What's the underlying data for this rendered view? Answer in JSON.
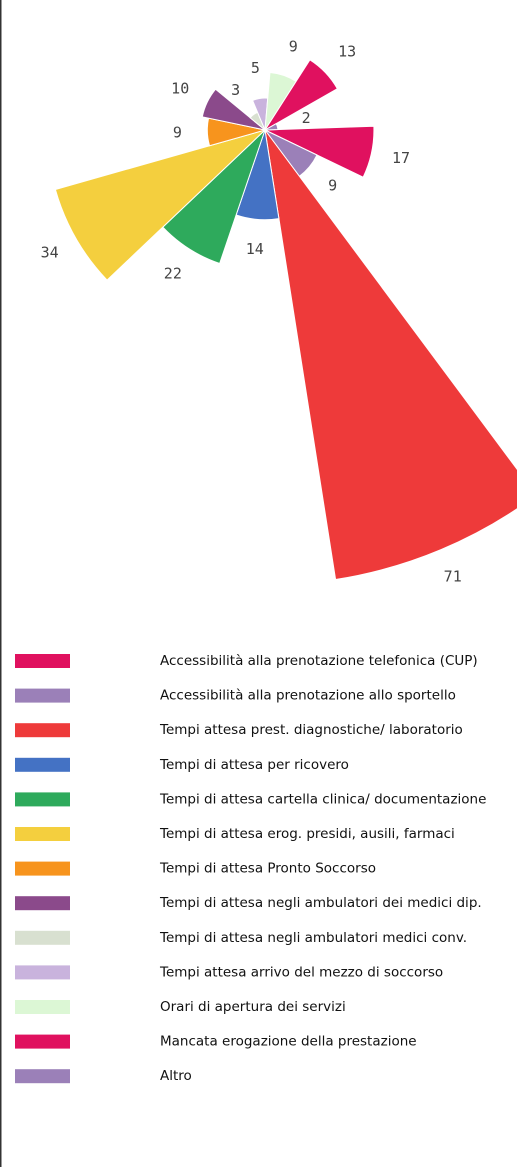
{
  "chart_data": {
    "type": "rose",
    "categories": [
      "Accessibilità alla prenotazione telefonica (CUP)",
      "Accessibilità alla prenotazione allo sportello",
      "Tempi attesa prest. diagnostiche/ laboratorio",
      "Tempi di attesa per ricovero",
      "Tempi di attesa cartella clinica/ documentazione",
      "Tempi di attesa erog. presidi, ausili, farmaci",
      "Tempi di attesa Pronto Soccorso",
      "Tempi di attesa negli ambulatori dei medici dip.",
      "Tempi di attesa negli ambulatori medici conv.",
      "Tempi attesa arrivo del mezzo di soccorso",
      "Orari di apertura dei servizi",
      "Mancata erogazione della prestazione",
      "Altro"
    ],
    "values": [
      17,
      9,
      71,
      14,
      22,
      34,
      9,
      10,
      3,
      5,
      9,
      13,
      2
    ],
    "colors": [
      "#e0115f",
      "#9b80b8",
      "#ee3a3a",
      "#4472c4",
      "#2eaa5c",
      "#f4cf3e",
      "#f7941d",
      "#8b4a8b",
      "#d8e0d0",
      "#c9b3dd",
      "#dcf7d5",
      "#e0115f",
      "#9b80b8"
    ]
  }
}
